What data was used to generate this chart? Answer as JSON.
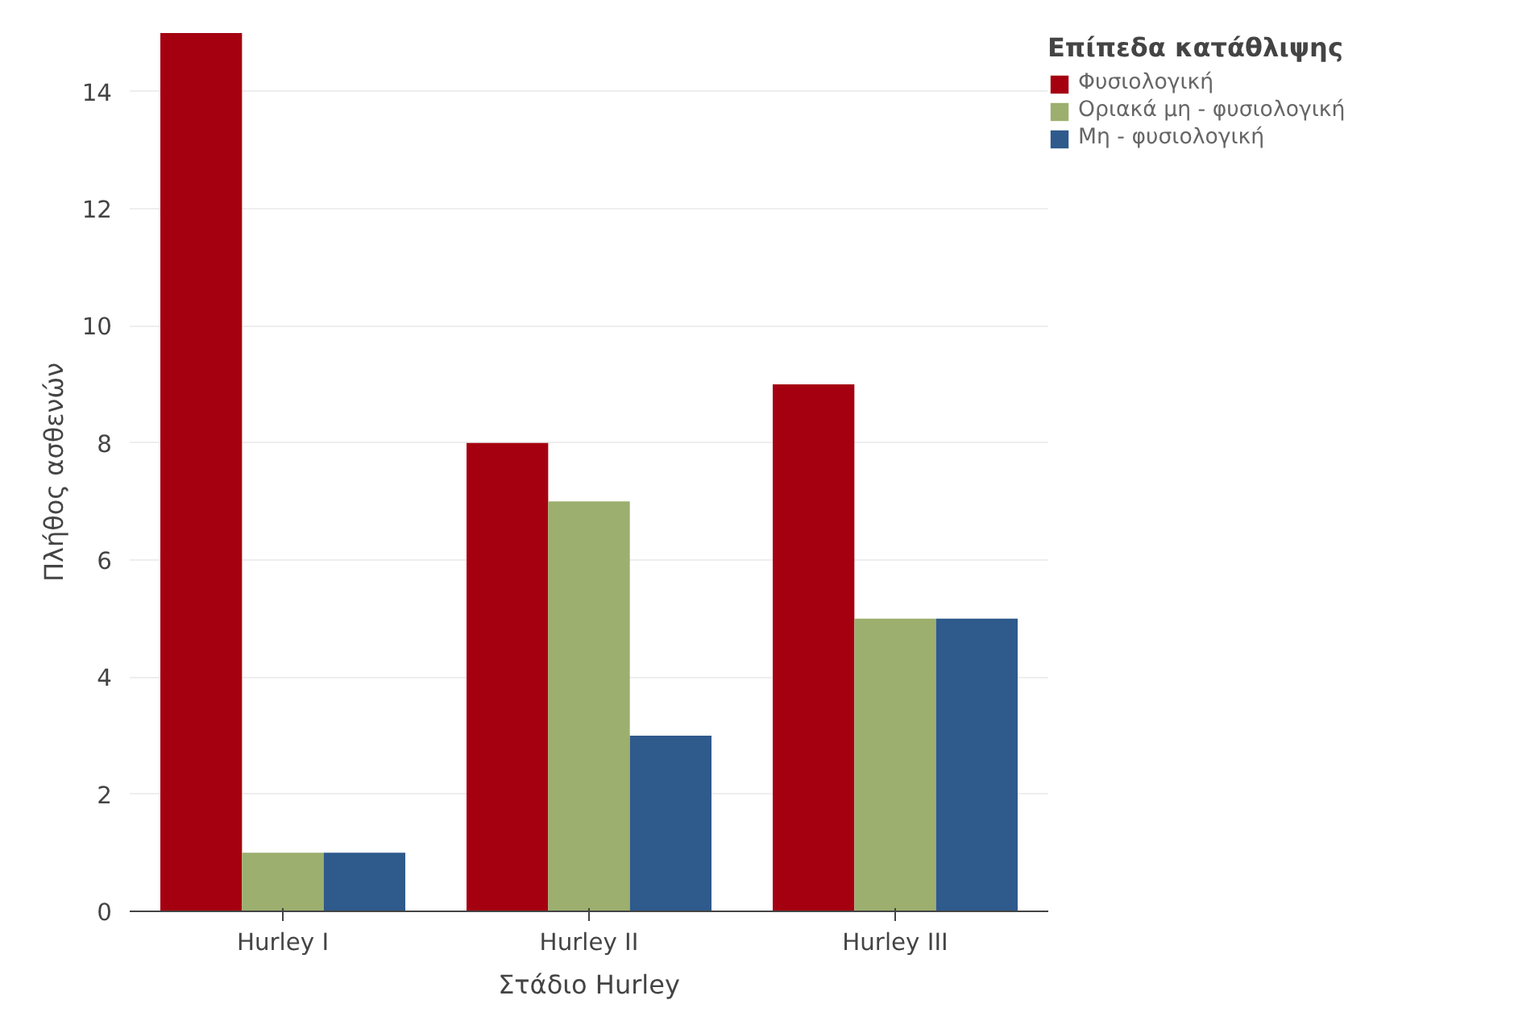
{
  "chart_data": {
    "type": "bar",
    "xlabel": "Στάδιο Hurley",
    "ylabel": "Πλήθος ασθενών",
    "legend_title": "Επίπεδα κατάθλιψης",
    "categories": [
      "Hurley I",
      "Hurley II",
      "Hurley III"
    ],
    "series": [
      {
        "name": "Φυσιολογική",
        "color": "#a50010",
        "values": [
          15,
          8,
          9
        ]
      },
      {
        "name": "Οριακά μη - φυσιολογική",
        "color": "#9caf6e",
        "values": [
          1,
          7,
          5
        ]
      },
      {
        "name": "Μη - φυσιολογική",
        "color": "#2e5a8c",
        "values": [
          1,
          3,
          5
        ]
      }
    ],
    "ylim": [
      0,
      15
    ],
    "yticks": [
      0,
      2,
      4,
      6,
      8,
      10,
      12,
      14
    ],
    "grid": "y",
    "legend": "top right"
  }
}
